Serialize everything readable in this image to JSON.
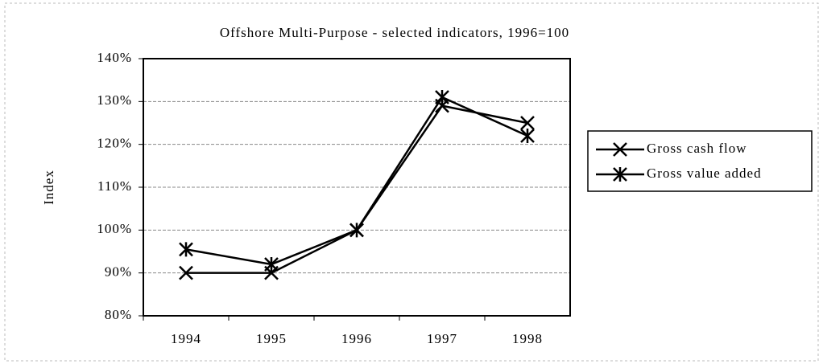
{
  "chart_data": {
    "type": "line",
    "title": "Offshore Multi-Purpose - selected indicators, 1996=100",
    "y_label": "Index",
    "categories": [
      "1994",
      "1995",
      "1996",
      "1997",
      "1998"
    ],
    "series": [
      {
        "name": "Gross cash flow",
        "color": "#000000",
        "marker": "x",
        "values": [
          90,
          90,
          100,
          129,
          125
        ]
      },
      {
        "name": "Gross value added",
        "color": "#000000",
        "marker": "asterisk",
        "values": [
          95.5,
          92,
          100,
          131,
          122
        ]
      }
    ],
    "ylim": [
      80,
      140
    ],
    "yticks": [
      {
        "value": 80,
        "label": "80%"
      },
      {
        "value": 90,
        "label": "90%"
      },
      {
        "value": 100,
        "label": "100%"
      },
      {
        "value": 110,
        "label": "110%"
      },
      {
        "value": 120,
        "label": "120%"
      },
      {
        "value": 130,
        "label": "130%"
      },
      {
        "value": 140,
        "label": "140%"
      }
    ],
    "grid": true
  }
}
